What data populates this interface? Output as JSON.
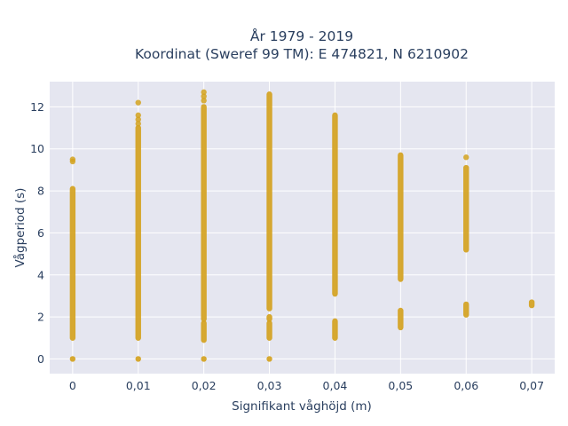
{
  "chart_data": {
    "type": "scatter",
    "title_lines": [
      "År 1979 - 2019",
      "Koordinat (Sweref 99 TM): E 474821, N 6210902"
    ],
    "xlabel": "Signifikant våghöjd (m)",
    "ylabel": "Vågperiod (s)",
    "xlim": [
      -0.0035,
      0.0735
    ],
    "ylim": [
      -0.7,
      13.2
    ],
    "x_ticks": [
      0,
      0.01,
      0.02,
      0.03,
      0.04,
      0.05,
      0.06,
      0.07
    ],
    "x_tick_labels": [
      "0",
      "0,01",
      "0,02",
      "0,03",
      "0,04",
      "0,05",
      "0,06",
      "0,07"
    ],
    "y_ticks": [
      0,
      2,
      4,
      6,
      8,
      10,
      12
    ],
    "y_tick_labels": [
      "0",
      "2",
      "4",
      "6",
      "8",
      "10",
      "12"
    ],
    "grid": true,
    "marker_color": "#d4a21f",
    "background_color": "#e5e6f0",
    "columns": [
      {
        "x": 0,
        "bands": [
          [
            0,
            0
          ],
          [
            1.0,
            8.1
          ]
        ],
        "points": [
          9.4,
          9.5
        ]
      },
      {
        "x": 0.01,
        "bands": [
          [
            0,
            0
          ],
          [
            1.0,
            11.0
          ]
        ],
        "points": [
          11.2,
          11.4,
          11.6,
          12.2
        ]
      },
      {
        "x": 0.02,
        "bands": [
          [
            0,
            0
          ],
          [
            0.9,
            1.7
          ],
          [
            1.9,
            12.0
          ]
        ],
        "points": [
          12.3,
          12.5,
          12.7
        ]
      },
      {
        "x": 0.03,
        "bands": [
          [
            0,
            0
          ],
          [
            1.0,
            1.7
          ],
          [
            1.9,
            2.0
          ],
          [
            2.4,
            12.6
          ]
        ],
        "points": []
      },
      {
        "x": 0.04,
        "bands": [
          [
            1.0,
            1.8
          ],
          [
            3.1,
            11.6
          ]
        ],
        "points": []
      },
      {
        "x": 0.05,
        "bands": [
          [
            1.5,
            2.3
          ],
          [
            3.8,
            9.7
          ]
        ],
        "points": []
      },
      {
        "x": 0.06,
        "bands": [
          [
            2.1,
            2.6
          ],
          [
            5.2,
            9.1
          ]
        ],
        "points": [
          9.6
        ]
      },
      {
        "x": 0.07,
        "bands": [
          [
            2.55,
            2.7
          ]
        ],
        "points": []
      }
    ]
  }
}
